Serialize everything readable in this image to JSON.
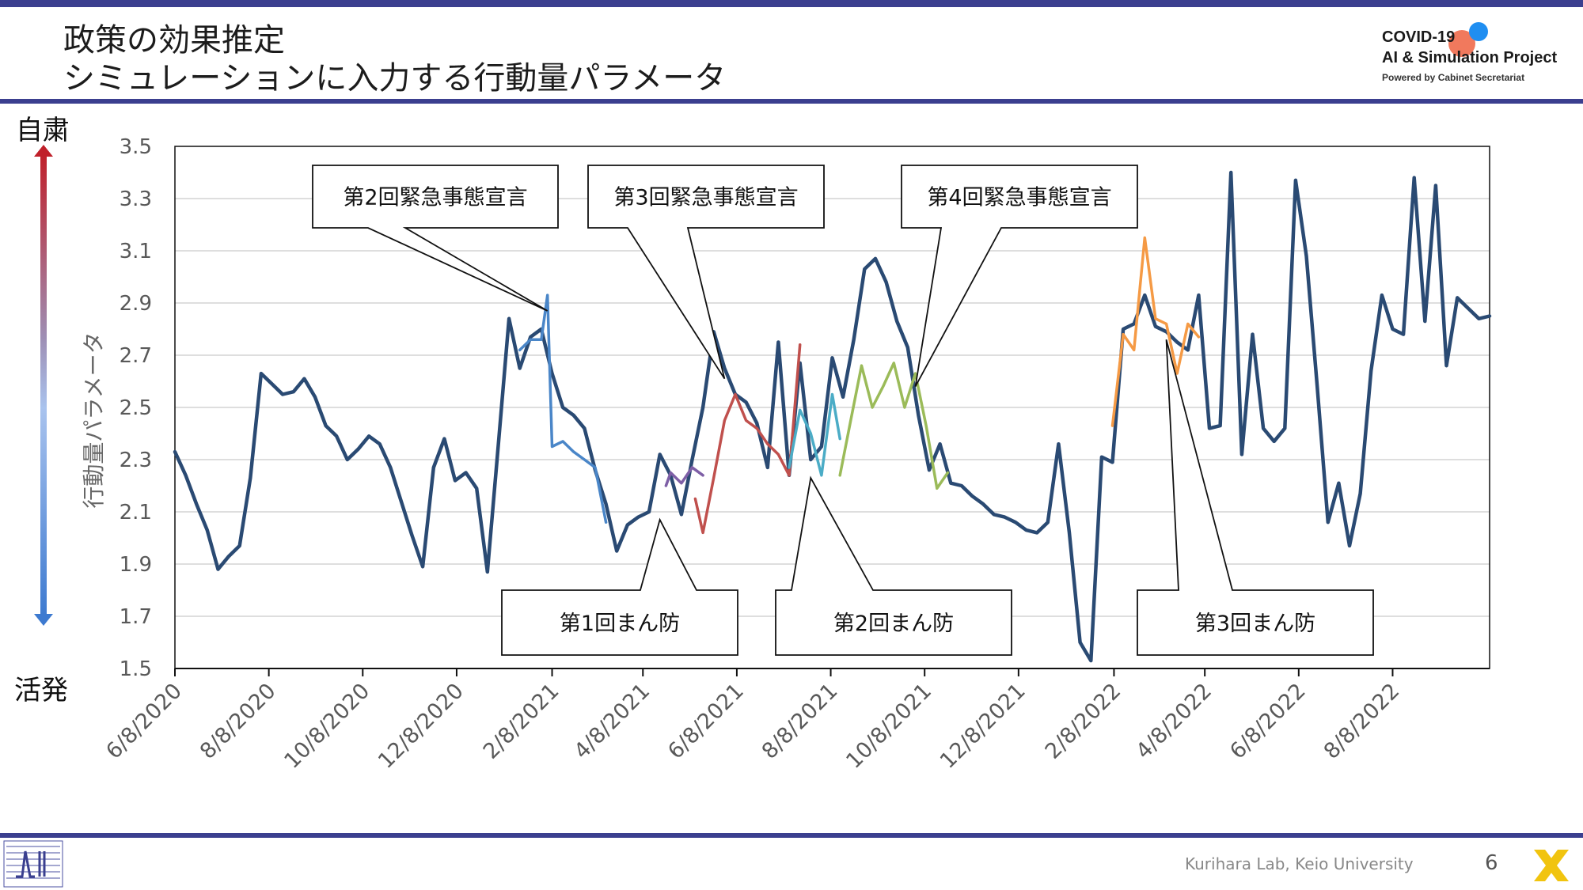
{
  "header": {
    "title_line1": "政策の効果推定",
    "title_line2": "シミュレーションに入力する行動量パラメータ"
  },
  "logo": {
    "line1": "COVID-19",
    "line2": "AI & Simulation Project",
    "line3": "Powered by Cabinet Secretariat"
  },
  "arrow": {
    "top_label": "自粛",
    "bottom_label": "活発"
  },
  "footer": {
    "credit": "Kurihara Lab, Keio University",
    "page": "6"
  },
  "colors": {
    "brand_bar": "#3b3f8f",
    "main_series": "#2a4a73",
    "series_blue": "#4a86c8",
    "series_purple": "#7e5fa6",
    "series_red": "#c0504d",
    "series_teal": "#4bacc6",
    "series_green": "#9bbb59",
    "series_orange": "#f59a45"
  },
  "chart_data": {
    "type": "line",
    "title": "",
    "xlabel": "",
    "ylabel": "行動量パラメータ",
    "ylim": [
      1.5,
      3.5
    ],
    "yticks": [
      "1.5",
      "1.7",
      "1.9",
      "2.1",
      "2.3",
      "2.5",
      "2.7",
      "2.9",
      "3.1",
      "3.3",
      "3.5"
    ],
    "xticks": [
      "6/8/2020",
      "8/8/2020",
      "10/8/2020",
      "12/8/2020",
      "2/8/2021",
      "4/8/2021",
      "6/8/2021",
      "8/8/2021",
      "10/8/2021",
      "12/8/2021",
      "2/8/2022",
      "4/8/2022",
      "6/8/2022",
      "8/8/2022"
    ],
    "grid": true,
    "legend": "none",
    "series": [
      {
        "points": [
          [
            "2020-06-08",
            2.33
          ],
          [
            "2020-06-15",
            2.24
          ],
          [
            "2020-06-22",
            2.13
          ],
          [
            "2020-06-29",
            2.03
          ],
          [
            "2020-07-06",
            1.88
          ],
          [
            "2020-07-13",
            1.93
          ],
          [
            "2020-07-20",
            1.97
          ],
          [
            "2020-07-27",
            2.23
          ],
          [
            "2020-08-03",
            2.63
          ],
          [
            "2020-08-10",
            2.59
          ],
          [
            "2020-08-17",
            2.55
          ],
          [
            "2020-08-24",
            2.56
          ],
          [
            "2020-08-31",
            2.61
          ],
          [
            "2020-09-07",
            2.54
          ],
          [
            "2020-09-14",
            2.43
          ],
          [
            "2020-09-21",
            2.39
          ],
          [
            "2020-09-28",
            2.3
          ],
          [
            "2020-10-05",
            2.34
          ],
          [
            "2020-10-12",
            2.39
          ],
          [
            "2020-10-19",
            2.36
          ],
          [
            "2020-10-26",
            2.27
          ],
          [
            "2020-11-02",
            2.14
          ],
          [
            "2020-11-09",
            2.01
          ],
          [
            "2020-11-16",
            1.89
          ],
          [
            "2020-11-23",
            2.27
          ],
          [
            "2020-11-30",
            2.38
          ],
          [
            "2020-12-07",
            2.22
          ],
          [
            "2020-12-14",
            2.25
          ],
          [
            "2020-12-21",
            2.19
          ],
          [
            "2020-12-28",
            1.87
          ],
          [
            "2021-01-04",
            2.35
          ],
          [
            "2021-01-11",
            2.84
          ],
          [
            "2021-01-18",
            2.65
          ],
          [
            "2021-01-25",
            2.77
          ],
          [
            "2021-02-01",
            2.8
          ],
          [
            "2021-02-08",
            2.63
          ],
          [
            "2021-02-15",
            2.5
          ],
          [
            "2021-02-22",
            2.47
          ],
          [
            "2021-03-01",
            2.42
          ],
          [
            "2021-03-08",
            2.26
          ],
          [
            "2021-03-15",
            2.13
          ],
          [
            "2021-03-22",
            1.95
          ],
          [
            "2021-03-29",
            2.05
          ],
          [
            "2021-04-05",
            2.08
          ],
          [
            "2021-04-12",
            2.1
          ],
          [
            "2021-04-19",
            2.32
          ],
          [
            "2021-04-26",
            2.24
          ],
          [
            "2021-05-03",
            2.09
          ],
          [
            "2021-05-10",
            2.3
          ],
          [
            "2021-05-17",
            2.5
          ],
          [
            "2021-05-24",
            2.79
          ],
          [
            "2021-05-31",
            2.65
          ],
          [
            "2021-06-07",
            2.55
          ],
          [
            "2021-06-14",
            2.52
          ],
          [
            "2021-06-21",
            2.44
          ],
          [
            "2021-06-28",
            2.27
          ],
          [
            "2021-07-05",
            2.75
          ],
          [
            "2021-07-12",
            2.24
          ],
          [
            "2021-07-19",
            2.67
          ],
          [
            "2021-07-26",
            2.3
          ],
          [
            "2021-08-02",
            2.35
          ],
          [
            "2021-08-09",
            2.69
          ],
          [
            "2021-08-16",
            2.54
          ],
          [
            "2021-08-23",
            2.76
          ],
          [
            "2021-08-30",
            3.03
          ],
          [
            "2021-09-06",
            3.07
          ],
          [
            "2021-09-13",
            2.98
          ],
          [
            "2021-09-20",
            2.83
          ],
          [
            "2021-09-27",
            2.73
          ],
          [
            "2021-10-04",
            2.47
          ],
          [
            "2021-10-11",
            2.26
          ],
          [
            "2021-10-18",
            2.36
          ],
          [
            "2021-10-25",
            2.21
          ],
          [
            "2021-11-01",
            2.2
          ],
          [
            "2021-11-08",
            2.16
          ],
          [
            "2021-11-15",
            2.13
          ],
          [
            "2021-11-22",
            2.09
          ],
          [
            "2021-11-29",
            2.08
          ],
          [
            "2021-12-06",
            2.06
          ],
          [
            "2021-12-13",
            2.03
          ],
          [
            "2021-12-20",
            2.02
          ],
          [
            "2021-12-27",
            2.06
          ],
          [
            "2022-01-03",
            2.36
          ],
          [
            "2022-01-10",
            2.02
          ],
          [
            "2022-01-17",
            1.6
          ],
          [
            "2022-01-24",
            1.53
          ],
          [
            "2022-01-31",
            2.31
          ],
          [
            "2022-02-07",
            2.29
          ],
          [
            "2022-02-14",
            2.8
          ],
          [
            "2022-02-21",
            2.82
          ],
          [
            "2022-02-28",
            2.93
          ],
          [
            "2022-03-07",
            2.81
          ],
          [
            "2022-03-14",
            2.79
          ],
          [
            "2022-03-21",
            2.75
          ],
          [
            "2022-03-28",
            2.72
          ],
          [
            "2022-04-04",
            2.93
          ],
          [
            "2022-04-11",
            2.42
          ],
          [
            "2022-04-18",
            2.43
          ],
          [
            "2022-04-25",
            3.4
          ],
          [
            "2022-05-02",
            2.32
          ],
          [
            "2022-05-09",
            2.78
          ],
          [
            "2022-05-16",
            2.42
          ],
          [
            "2022-05-23",
            2.37
          ],
          [
            "2022-05-30",
            2.42
          ],
          [
            "2022-06-06",
            3.37
          ],
          [
            "2022-06-13",
            3.08
          ],
          [
            "2022-06-20",
            2.58
          ],
          [
            "2022-06-27",
            2.06
          ],
          [
            "2022-07-04",
            2.21
          ],
          [
            "2022-07-11",
            1.97
          ],
          [
            "2022-07-18",
            2.17
          ],
          [
            "2022-07-25",
            2.64
          ],
          [
            "2022-08-01",
            2.93
          ],
          [
            "2022-08-08",
            2.8
          ],
          [
            "2022-08-15",
            2.78
          ],
          [
            "2022-08-22",
            3.38
          ],
          [
            "2022-08-29",
            2.83
          ],
          [
            "2022-09-05",
            3.35
          ],
          [
            "2022-09-12",
            2.66
          ],
          [
            "2022-09-19",
            2.92
          ],
          [
            "2022-09-26",
            2.88
          ],
          [
            "2022-10-03",
            2.84
          ],
          [
            "2022-10-10",
            2.85
          ]
        ],
        "color": "#2a4a73",
        "width": 4.5
      },
      {
        "points": [
          [
            "2021-01-18",
            2.72
          ],
          [
            "2021-01-25",
            2.76
          ],
          [
            "2021-02-01",
            2.76
          ],
          [
            "2021-02-05",
            2.93
          ],
          [
            "2021-02-08",
            2.35
          ],
          [
            "2021-02-15",
            2.37
          ],
          [
            "2021-02-22",
            2.33
          ],
          [
            "2021-03-01",
            2.3
          ],
          [
            "2021-03-08",
            2.27
          ],
          [
            "2021-03-15",
            2.06
          ]
        ],
        "color": "#4a86c8",
        "width": 3.5
      },
      {
        "points": [
          [
            "2021-04-23",
            2.2
          ],
          [
            "2021-04-26",
            2.25
          ],
          [
            "2021-05-03",
            2.21
          ],
          [
            "2021-05-10",
            2.27
          ],
          [
            "2021-05-17",
            2.24
          ]
        ],
        "color": "#7e5fa6",
        "width": 3.5
      },
      {
        "points": [
          [
            "2021-05-12",
            2.15
          ],
          [
            "2021-05-17",
            2.02
          ],
          [
            "2021-05-24",
            2.23
          ],
          [
            "2021-05-31",
            2.45
          ],
          [
            "2021-06-07",
            2.55
          ],
          [
            "2021-06-14",
            2.45
          ],
          [
            "2021-06-21",
            2.42
          ],
          [
            "2021-06-28",
            2.36
          ],
          [
            "2021-07-05",
            2.32
          ],
          [
            "2021-07-12",
            2.24
          ],
          [
            "2021-07-19",
            2.74
          ]
        ],
        "color": "#c0504d",
        "width": 3.5
      },
      {
        "points": [
          [
            "2021-07-12",
            2.27
          ],
          [
            "2021-07-19",
            2.49
          ],
          [
            "2021-07-26",
            2.4
          ],
          [
            "2021-08-02",
            2.24
          ],
          [
            "2021-08-09",
            2.55
          ],
          [
            "2021-08-14",
            2.38
          ]
        ],
        "color": "#4bacc6",
        "width": 3.5
      },
      {
        "points": [
          [
            "2021-08-14",
            2.24
          ],
          [
            "2021-08-21",
            2.45
          ],
          [
            "2021-08-28",
            2.66
          ],
          [
            "2021-09-04",
            2.5
          ],
          [
            "2021-09-11",
            2.58
          ],
          [
            "2021-09-18",
            2.67
          ],
          [
            "2021-09-25",
            2.5
          ],
          [
            "2021-10-02",
            2.63
          ],
          [
            "2021-10-09",
            2.43
          ],
          [
            "2021-10-16",
            2.19
          ],
          [
            "2021-10-23",
            2.25
          ]
        ],
        "color": "#9bbb59",
        "width": 3.5
      },
      {
        "points": [
          [
            "2022-02-07",
            2.43
          ],
          [
            "2022-02-14",
            2.78
          ],
          [
            "2022-02-21",
            2.72
          ],
          [
            "2022-02-28",
            3.15
          ],
          [
            "2022-03-07",
            2.84
          ],
          [
            "2022-03-14",
            2.82
          ],
          [
            "2022-03-21",
            2.63
          ],
          [
            "2022-03-28",
            2.82
          ],
          [
            "2022-04-04",
            2.77
          ]
        ],
        "color": "#f59a45",
        "width": 3.5
      }
    ],
    "annotations": [
      {
        "label": "第2回緊急事態宣言",
        "target": [
          "2021-02-05",
          2.87
        ]
      },
      {
        "label": "第3回緊急事態宣言",
        "target": [
          "2021-05-31",
          2.61
        ]
      },
      {
        "label": "第4回緊急事態宣言",
        "target": [
          "2021-10-02",
          2.58
        ]
      },
      {
        "label": "第1回まん防",
        "target": [
          "2021-04-19",
          2.07
        ]
      },
      {
        "label": "第2回まん防",
        "target": [
          "2021-07-26",
          2.23
        ]
      },
      {
        "label": "第3回まん防",
        "target": [
          "2022-03-14",
          2.76
        ]
      }
    ]
  }
}
